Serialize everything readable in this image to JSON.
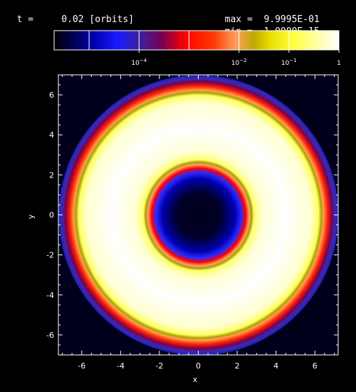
{
  "header": {
    "time_label": "t =",
    "time_value": "0.02 [orbits]",
    "max_label": "max =",
    "max_value": "9.9995E-01",
    "min_label": "min =",
    "min_value": "1.0000E-15"
  },
  "colorbar": {
    "ticks": [
      {
        "exp": -4,
        "base": "10",
        "sup": "−4"
      },
      {
        "exp": -2,
        "base": "10",
        "sup": "−2"
      },
      {
        "exp": -1,
        "base": "10",
        "sup": "−1"
      },
      {
        "exp": 0,
        "base": "1",
        "sup": ""
      }
    ],
    "range_log10": [
      -5.7,
      0
    ]
  },
  "chart_data": {
    "type": "heatmap",
    "description_scale": "log",
    "xlabel": "x",
    "ylabel": "y",
    "xlim": [
      -7.2,
      7.2
    ],
    "ylim": [
      -7.0,
      7.0
    ],
    "xticks": [
      -6,
      -4,
      -2,
      0,
      2,
      4,
      6
    ],
    "yticks": [
      -6,
      -4,
      -2,
      0,
      2,
      4,
      6
    ],
    "field": {
      "shape": "annulus",
      "inner_radius": 2.9,
      "outer_radius": 6.2,
      "peak_value": 0.99995,
      "min_value": 1e-15
    },
    "colors": {
      "background": "#000000",
      "frame": "#ffffff"
    }
  }
}
